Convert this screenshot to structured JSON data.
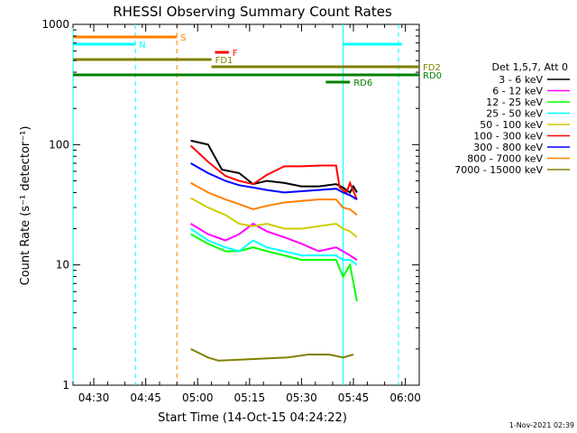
{
  "chart_data": {
    "type": "line",
    "title": "RHESSI Observing Summary Count Rates",
    "xlabel": "Start Time (14-Oct-15 04:24:22)",
    "ylabel": "Count Rate (s⁻¹ detector⁻¹)",
    "yscale": "log",
    "ylim": [
      1,
      1000
    ],
    "xlim": [
      "04:24",
      "06:04"
    ],
    "x_ticks": [
      "04:30",
      "04:45",
      "05:00",
      "05:15",
      "05:30",
      "05:45",
      "06:00"
    ],
    "y_ticks": [
      "1",
      "10",
      "100",
      "1000"
    ],
    "legend_title": "Det 1,5,7, Att 0",
    "legend_position": "right",
    "timestamp": "1-Nov-2021 02:39",
    "series": [
      {
        "name": "3 - 6 keV",
        "color": "#000000",
        "points": [
          [
            "04:58",
            108
          ],
          [
            "05:03",
            100
          ],
          [
            "05:07",
            62
          ],
          [
            "05:12",
            58
          ],
          [
            "05:16",
            47
          ],
          [
            "05:20",
            50
          ],
          [
            "05:25",
            48
          ],
          [
            "05:30",
            45
          ],
          [
            "05:35",
            45
          ],
          [
            "05:40",
            47
          ],
          [
            "05:42",
            44
          ],
          [
            "05:44",
            40
          ],
          [
            "05:45",
            45
          ],
          [
            "05:46",
            40
          ]
        ]
      },
      {
        "name": "6 - 12 keV",
        "color": "#ff00ff",
        "points": [
          [
            "04:58",
            22
          ],
          [
            "05:03",
            18
          ],
          [
            "05:08",
            16
          ],
          [
            "05:12",
            18
          ],
          [
            "05:16",
            22
          ],
          [
            "05:20",
            19
          ],
          [
            "05:25",
            17
          ],
          [
            "05:30",
            15
          ],
          [
            "05:35",
            13
          ],
          [
            "05:40",
            14
          ],
          [
            "05:42",
            13
          ],
          [
            "05:44",
            12
          ],
          [
            "05:46",
            11
          ]
        ]
      },
      {
        "name": "12 - 25 keV",
        "color": "#00ff00",
        "points": [
          [
            "04:58",
            18
          ],
          [
            "05:03",
            15
          ],
          [
            "05:08",
            13
          ],
          [
            "05:12",
            13
          ],
          [
            "05:16",
            14
          ],
          [
            "05:20",
            13
          ],
          [
            "05:25",
            12
          ],
          [
            "05:30",
            11
          ],
          [
            "05:35",
            11
          ],
          [
            "05:40",
            11
          ],
          [
            "05:42",
            8
          ],
          [
            "05:44",
            10
          ],
          [
            "05:46",
            5
          ]
        ]
      },
      {
        "name": "25 - 50 keV",
        "color": "#00ffff",
        "points": [
          [
            "04:58",
            20
          ],
          [
            "05:03",
            16
          ],
          [
            "05:08",
            14
          ],
          [
            "05:12",
            13
          ],
          [
            "05:16",
            16
          ],
          [
            "05:20",
            14
          ],
          [
            "05:25",
            13
          ],
          [
            "05:30",
            12
          ],
          [
            "05:35",
            12
          ],
          [
            "05:40",
            12
          ],
          [
            "05:42",
            11
          ],
          [
            "05:44",
            11
          ],
          [
            "05:46",
            10
          ]
        ]
      },
      {
        "name": "50 - 100 keV",
        "color": "#cccc00",
        "points": [
          [
            "04:58",
            36
          ],
          [
            "05:03",
            30
          ],
          [
            "05:08",
            26
          ],
          [
            "05:12",
            22
          ],
          [
            "05:16",
            21
          ],
          [
            "05:20",
            22
          ],
          [
            "05:25",
            20
          ],
          [
            "05:30",
            20
          ],
          [
            "05:35",
            21
          ],
          [
            "05:40",
            22
          ],
          [
            "05:42",
            20
          ],
          [
            "05:44",
            19
          ],
          [
            "05:46",
            17
          ]
        ]
      },
      {
        "name": "100 - 300 keV",
        "color": "#ff0000",
        "points": [
          [
            "04:58",
            98
          ],
          [
            "05:03",
            72
          ],
          [
            "05:08",
            55
          ],
          [
            "05:12",
            50
          ],
          [
            "05:16",
            47
          ],
          [
            "05:20",
            56
          ],
          [
            "05:25",
            66
          ],
          [
            "05:30",
            66
          ],
          [
            "05:35",
            67
          ],
          [
            "05:40",
            67
          ],
          [
            "05:41",
            44
          ],
          [
            "05:43",
            40
          ],
          [
            "05:44",
            48
          ],
          [
            "05:46",
            35
          ]
        ]
      },
      {
        "name": "300 - 800 keV",
        "color": "#0000ff",
        "points": [
          [
            "04:58",
            70
          ],
          [
            "05:03",
            58
          ],
          [
            "05:08",
            50
          ],
          [
            "05:12",
            46
          ],
          [
            "05:16",
            44
          ],
          [
            "05:20",
            42
          ],
          [
            "05:25",
            40
          ],
          [
            "05:30",
            41
          ],
          [
            "05:35",
            42
          ],
          [
            "05:40",
            43
          ],
          [
            "05:42",
            40
          ],
          [
            "05:44",
            38
          ],
          [
            "05:46",
            35
          ]
        ]
      },
      {
        "name": "800 - 7000 keV",
        "color": "#ff8000",
        "points": [
          [
            "04:58",
            48
          ],
          [
            "05:03",
            40
          ],
          [
            "05:08",
            35
          ],
          [
            "05:12",
            32
          ],
          [
            "05:16",
            29
          ],
          [
            "05:20",
            31
          ],
          [
            "05:25",
            33
          ],
          [
            "05:30",
            34
          ],
          [
            "05:35",
            35
          ],
          [
            "05:40",
            35
          ],
          [
            "05:42",
            30
          ],
          [
            "05:44",
            29
          ],
          [
            "05:46",
            26
          ]
        ]
      },
      {
        "name": "7000 - 15000 keV",
        "color": "#808000",
        "points": [
          [
            "04:58",
            2.0
          ],
          [
            "05:03",
            1.7
          ],
          [
            "05:06",
            1.6
          ],
          [
            "05:26",
            1.7
          ],
          [
            "05:32",
            1.8
          ],
          [
            "05:38",
            1.8
          ],
          [
            "05:42",
            1.7
          ],
          [
            "05:45",
            1.8
          ]
        ]
      }
    ],
    "time_markers": [
      {
        "time": "04:24",
        "color": "#00ffff",
        "solid": true
      },
      {
        "time": "04:42",
        "color": "#00ffff",
        "solid": false
      },
      {
        "time": "04:54",
        "color": "#ff8000",
        "solid": false
      },
      {
        "time": "05:42",
        "color": "#00ffff",
        "solid": true
      },
      {
        "time": "05:58",
        "color": "#00ffff",
        "solid": false
      }
    ],
    "flag_bars": [
      {
        "label": "S",
        "color": "#ff8000",
        "start": "04:24",
        "end": "04:54"
      },
      {
        "label": "N",
        "color": "#00ffff",
        "start": "04:24",
        "end": "04:42"
      },
      {
        "label": "",
        "color": "#00ffff",
        "start": "05:42",
        "end": "05:59"
      },
      {
        "label": "F",
        "color": "#ff0000",
        "start": "05:05",
        "end": "05:09"
      },
      {
        "label": "FD1",
        "color": "#808000",
        "start": "04:24",
        "end": "05:04"
      },
      {
        "label": "FD2",
        "color": "#808000",
        "start": "05:04",
        "end": "06:04"
      },
      {
        "label": "RD0",
        "color": "#008000",
        "start": "04:24",
        "end": "06:04"
      },
      {
        "label": "RD6",
        "color": "#008000",
        "start": "05:37",
        "end": "05:44"
      }
    ]
  }
}
